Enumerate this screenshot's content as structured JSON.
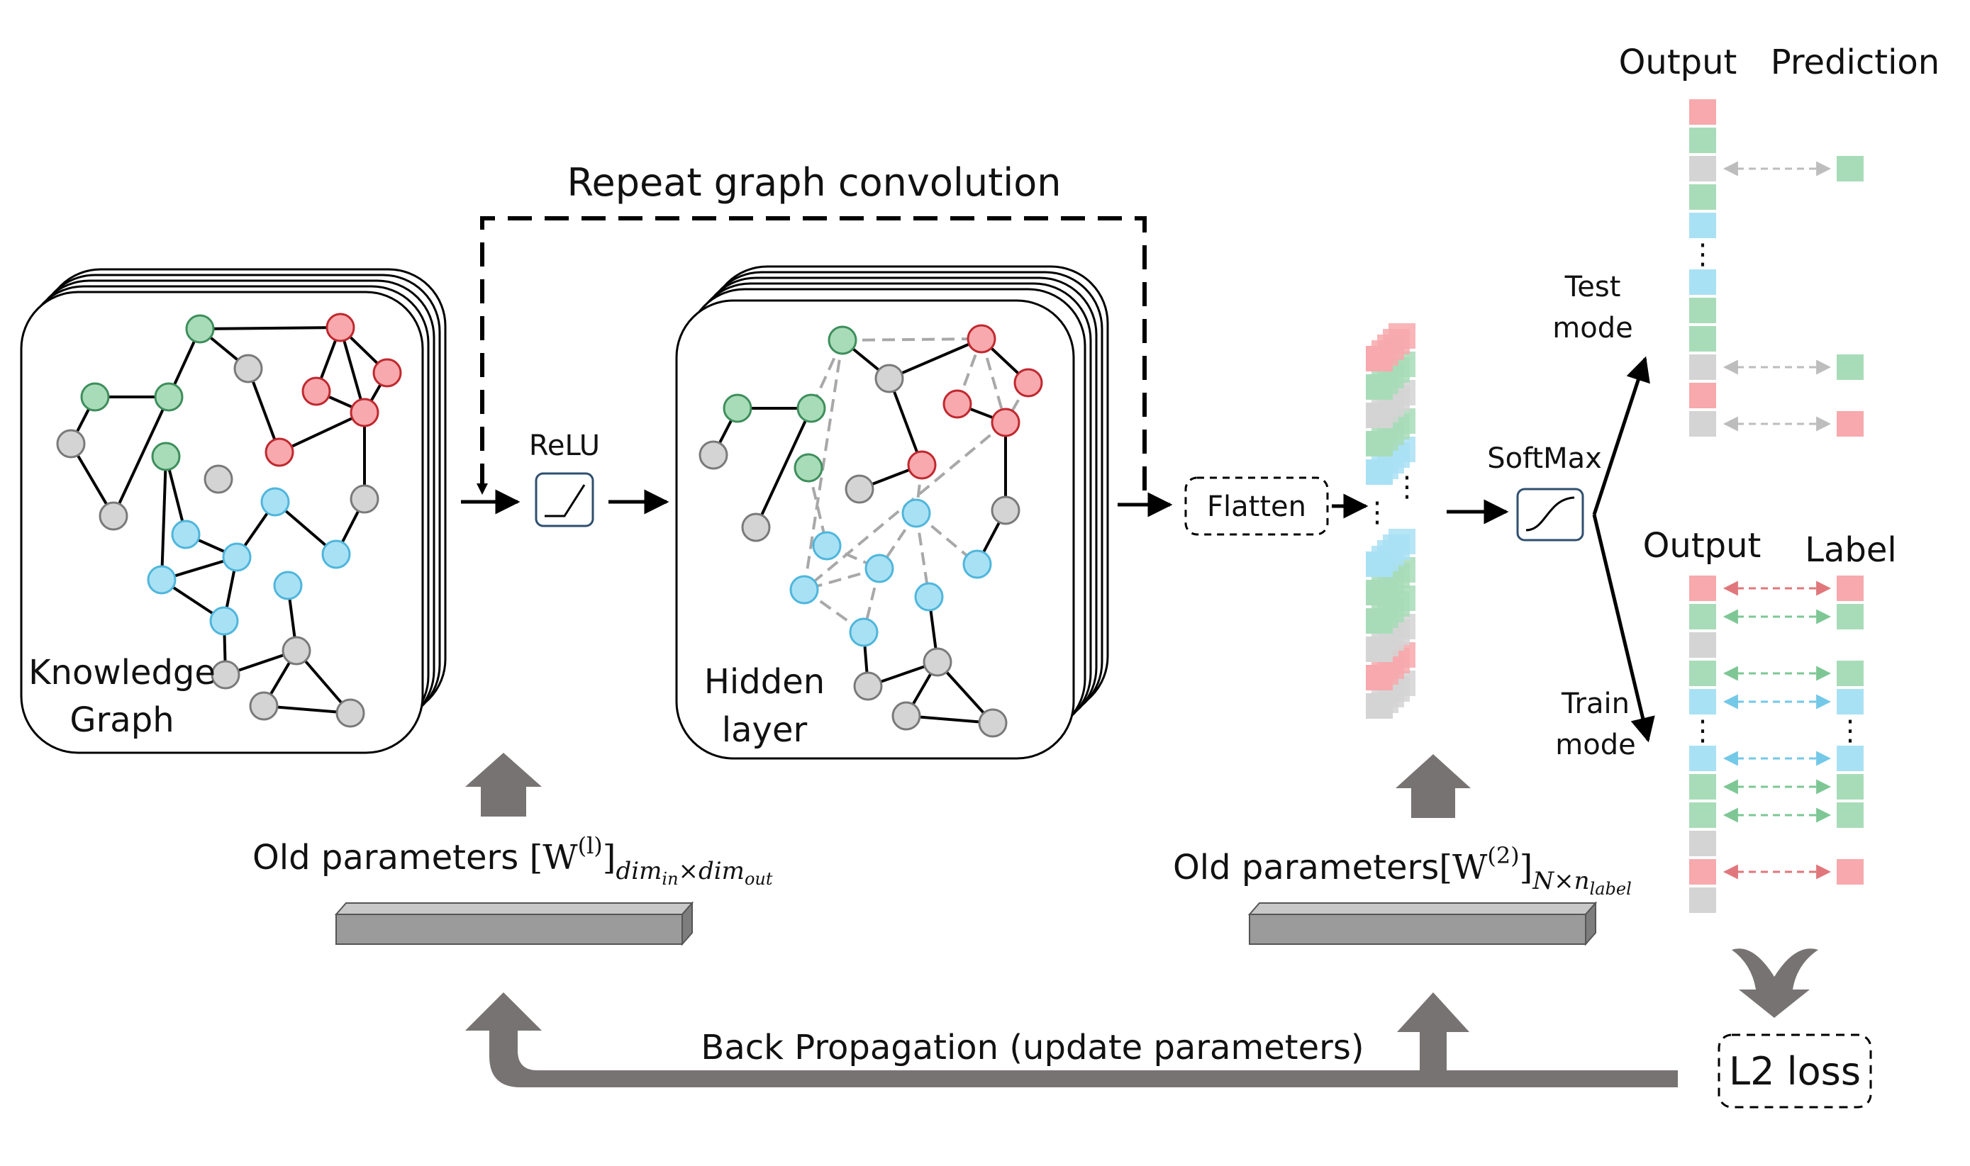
{
  "colors": {
    "green": "#a8dcb8",
    "green_stroke": "#3e8e5c",
    "red": "#f7a9ad",
    "red_stroke": "#c0282f",
    "gray": "#d4d4d4",
    "gray_stroke": "#7a7a7a",
    "blue": "#a9e1f4",
    "blue_stroke": "#4fb6dc",
    "arrow_gray": "#787373",
    "activation_box": "#2f4f6f"
  },
  "labels": {
    "repeat_conv": "Repeat graph convolution",
    "relu": "ReLU",
    "flatten": "Flatten",
    "softmax": "SoftMax",
    "kg_line1": "Knowledge",
    "kg_line2": "Graph",
    "hidden_line1": "Hidden",
    "hidden_line2": "layer",
    "test_line1": "Test",
    "test_line2": "mode",
    "train_line1": "Train",
    "train_line2": "mode",
    "output_top": "Output",
    "prediction": "Prediction",
    "output_bottom": "Output",
    "label": "Label",
    "l2_loss": "L2 loss",
    "back_prop": "Back Propagation (update parameters)",
    "old_params_1_prefix": "Old parameters ",
    "old_params_1_W": "[W",
    "old_params_1_sup": "(l)",
    "old_params_1_close": "]",
    "old_params_1_sub": "dim",
    "old_params_1_sub_in": "in",
    "old_params_1_times": "×",
    "old_params_1_sub2": "dim",
    "old_params_1_sub_out": "out",
    "old_params_2_prefix": "Old parameters",
    "old_params_2_W": "[W",
    "old_params_2_sup": "(2)",
    "old_params_2_close": "]",
    "old_params_2_sub": "N×n",
    "old_params_2_sub2": "label",
    "ellipsis": "⋮"
  },
  "test_output_column": [
    "red",
    "green",
    "gray",
    "green",
    "blue",
    "gap",
    "blue",
    "green",
    "green",
    "gray",
    "red",
    "gray"
  ],
  "test_prediction_links": [
    {
      "row": 2,
      "color": "green"
    },
    {
      "row": 9,
      "color": "green"
    },
    {
      "row": 11,
      "color": "red"
    }
  ],
  "train_output_column": [
    "red",
    "green",
    "gray",
    "green",
    "blue",
    "gap",
    "blue",
    "green",
    "green",
    "gray",
    "red",
    "gray"
  ],
  "train_label_links": [
    {
      "row": 0,
      "color": "red"
    },
    {
      "row": 1,
      "color": "green"
    },
    {
      "row": 3,
      "color": "green"
    },
    {
      "row": 4,
      "color": "blue"
    },
    {
      "row": 6,
      "color": "blue"
    },
    {
      "row": 7,
      "color": "green"
    },
    {
      "row": 8,
      "color": "green"
    },
    {
      "row": 10,
      "color": "red"
    }
  ],
  "flatten_stack_top": [
    "red",
    "green",
    "gray",
    "green",
    "blue"
  ],
  "flatten_stack_bottom": [
    "blue",
    "green",
    "green",
    "gray",
    "red",
    "gray"
  ]
}
